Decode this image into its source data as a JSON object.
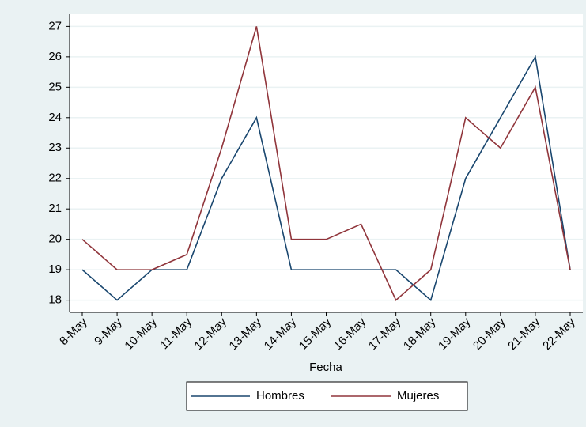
{
  "chart_data": {
    "type": "line",
    "x_label": "Fecha",
    "categories": [
      "8-May",
      "9-May",
      "10-May",
      "11-May",
      "12-May",
      "13-May",
      "14-May",
      "15-May",
      "16-May",
      "17-May",
      "18-May",
      "19-May",
      "20-May",
      "21-May",
      "22-May"
    ],
    "series": [
      {
        "name": "Hombres",
        "color": "#1a476f",
        "values": [
          19,
          18,
          19,
          19,
          22,
          24,
          19,
          19,
          19,
          19,
          18,
          22,
          24,
          26,
          19
        ]
      },
      {
        "name": "Mujeres",
        "color": "#90353b",
        "values": [
          20,
          19,
          19,
          19.5,
          23,
          27,
          20,
          20,
          20.5,
          18,
          19,
          24,
          23,
          25,
          19
        ]
      }
    ],
    "ylim": [
      17.6,
      27.4
    ],
    "yticks": [
      18,
      19,
      20,
      21,
      22,
      23,
      24,
      25,
      26,
      27
    ],
    "grid": true,
    "legend": "bottom"
  }
}
